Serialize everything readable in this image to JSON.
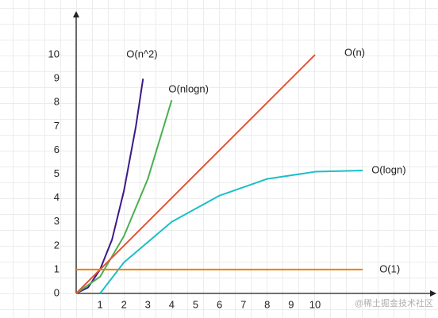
{
  "chart_data": {
    "type": "line",
    "xlim": [
      0,
      15
    ],
    "ylim": [
      0,
      11.6
    ],
    "xticks": [
      1,
      2,
      3,
      4,
      5,
      6,
      7,
      8,
      9,
      10
    ],
    "yticks": [
      0,
      1,
      2,
      3,
      4,
      5,
      6,
      7,
      8,
      9,
      10
    ],
    "series": [
      {
        "name": "O(n^2)",
        "color": "#3d1886",
        "x": [
          0,
          0.5,
          1,
          1.5,
          2,
          2.5,
          2.8
        ],
        "values": [
          0,
          0.25,
          1,
          2.25,
          4.3,
          7,
          9
        ]
      },
      {
        "name": "O(nlogn)",
        "color": "#4caf50",
        "x": [
          0,
          1,
          2,
          3,
          4
        ],
        "values": [
          0,
          0.7,
          2.4,
          4.8,
          8.1
        ]
      },
      {
        "name": "O(n)",
        "color": "#e2533a",
        "x": [
          0,
          10
        ],
        "values": [
          0,
          10
        ]
      },
      {
        "name": "O(logn)",
        "color": "#1bbfc9",
        "x": [
          1,
          2,
          4,
          6,
          8,
          10,
          12
        ],
        "values": [
          0,
          1.3,
          3,
          4.1,
          4.8,
          5.1,
          5.15
        ]
      },
      {
        "name": "O(1)",
        "color": "#f07c00",
        "x": [
          0,
          12
        ],
        "values": [
          1,
          1
        ]
      }
    ],
    "watermark": "@稀土掘金技术社区"
  }
}
